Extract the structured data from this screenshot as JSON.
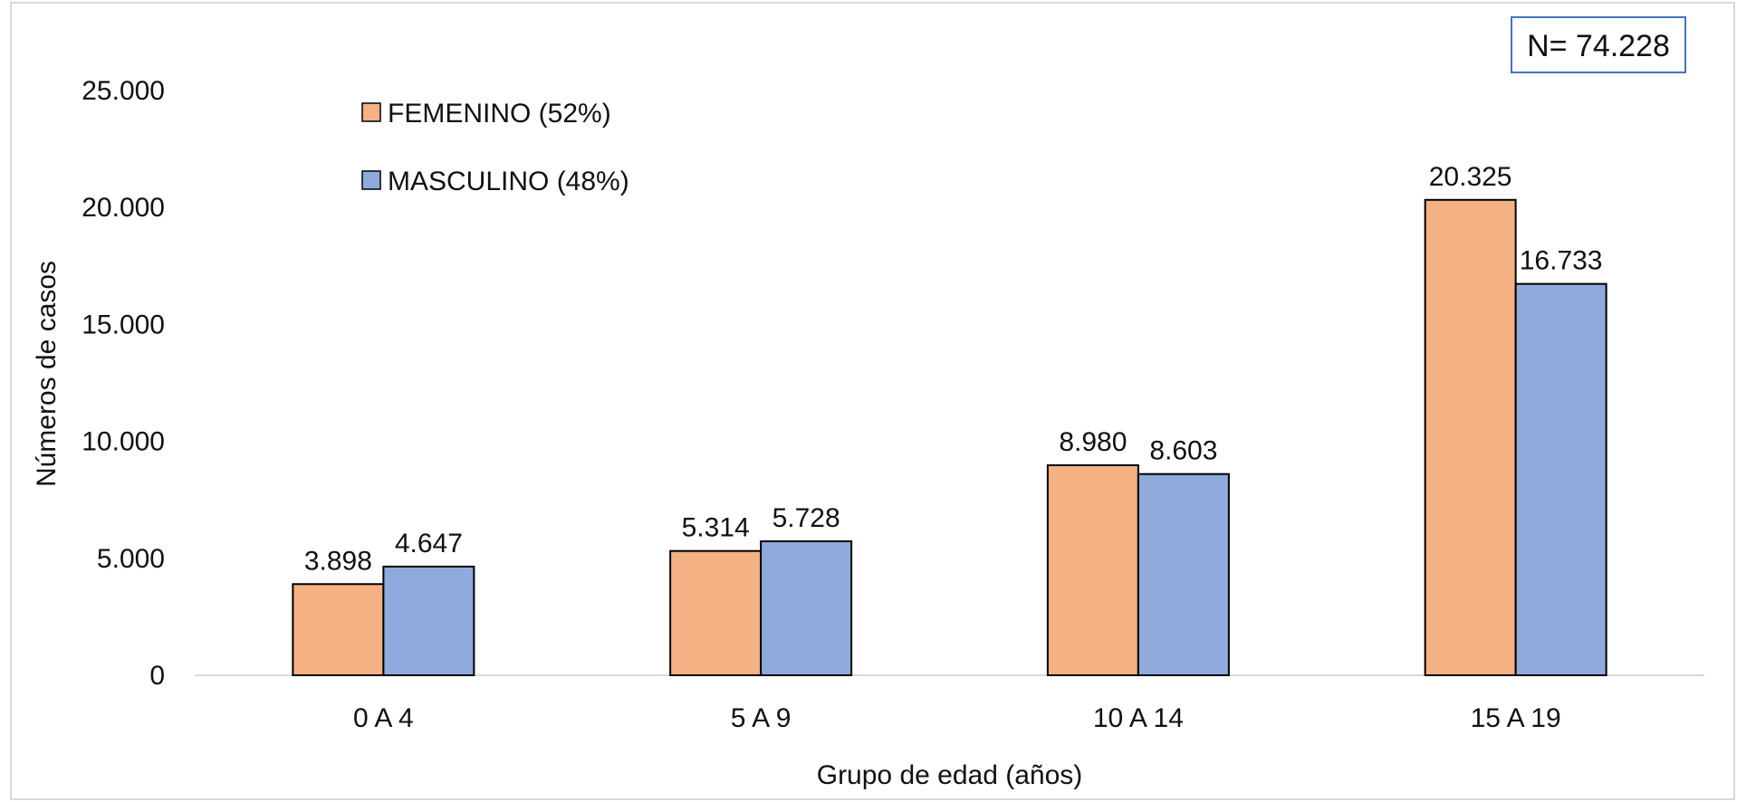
{
  "chart_data": {
    "type": "bar",
    "categories": [
      "0 A 4",
      "5 A 9",
      "10 A 14",
      "15 A 19"
    ],
    "series": [
      {
        "name": "FEMENINO (52%)",
        "color": "#F4B183",
        "values": [
          3898,
          5314,
          8980,
          20325
        ],
        "labels": [
          "3.898",
          "5.314",
          "8.980",
          "20.325"
        ]
      },
      {
        "name": "MASCULINO (48%)",
        "color": "#8FAADC",
        "values": [
          4647,
          5728,
          8603,
          16733
        ],
        "labels": [
          "4.647",
          "5.728",
          "8.603",
          "16.733"
        ]
      }
    ],
    "title": "",
    "xlabel": "Grupo de edad (años)",
    "ylabel": "Números de casos",
    "ylim": [
      0,
      25000
    ],
    "yticks": [
      0,
      5000,
      10000,
      15000,
      20000,
      25000
    ],
    "ytick_labels": [
      "0",
      "5.000",
      "10.000",
      "15.000",
      "20.000",
      "25.000"
    ],
    "grid": false,
    "legend_position": "top-left",
    "annotation": "N= 74.228"
  }
}
